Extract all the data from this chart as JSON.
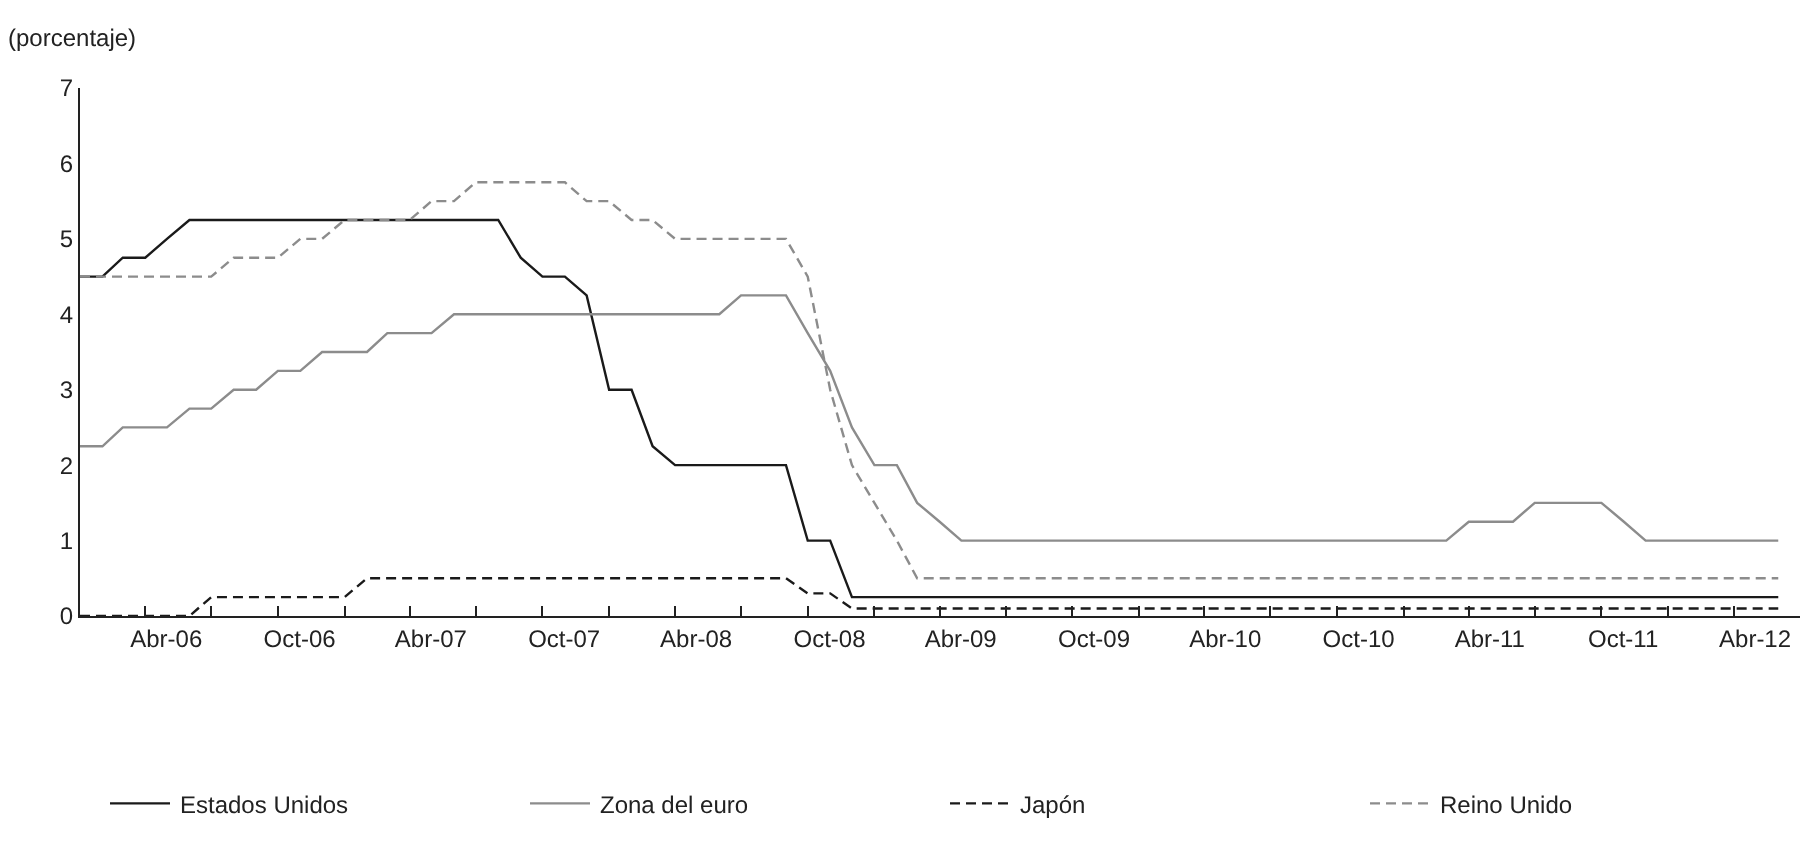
{
  "chart_data": {
    "type": "line",
    "ylabel": "(porcentaje)",
    "x": [
      "2006-01",
      "2006-02",
      "2006-03",
      "2006-04",
      "2006-05",
      "2006-06",
      "2006-07",
      "2006-08",
      "2006-09",
      "2006-10",
      "2006-11",
      "2006-12",
      "2007-01",
      "2007-02",
      "2007-03",
      "2007-04",
      "2007-05",
      "2007-06",
      "2007-07",
      "2007-08",
      "2007-09",
      "2007-10",
      "2007-11",
      "2007-12",
      "2008-01",
      "2008-02",
      "2008-03",
      "2008-04",
      "2008-05",
      "2008-06",
      "2008-07",
      "2008-08",
      "2008-09",
      "2008-10",
      "2008-11",
      "2008-12",
      "2009-01",
      "2009-02",
      "2009-03",
      "2009-04",
      "2009-05",
      "2009-06",
      "2009-07",
      "2009-08",
      "2009-09",
      "2009-10",
      "2009-11",
      "2009-12",
      "2010-01",
      "2010-02",
      "2010-03",
      "2010-04",
      "2010-05",
      "2010-06",
      "2010-07",
      "2010-08",
      "2010-09",
      "2010-10",
      "2010-11",
      "2010-12",
      "2011-01",
      "2011-02",
      "2011-03",
      "2011-04",
      "2011-05",
      "2011-06",
      "2011-07",
      "2011-08",
      "2011-09",
      "2011-10",
      "2011-11",
      "2011-12",
      "2012-01",
      "2012-02",
      "2012-03",
      "2012-04",
      "2012-05",
      "2012-06"
    ],
    "series": [
      {
        "name": "Estados Unidos",
        "color": "#1a1a1a",
        "line_style": "solid",
        "values": [
          4.5,
          4.5,
          4.75,
          4.75,
          5,
          5.25,
          5.25,
          5.25,
          5.25,
          5.25,
          5.25,
          5.25,
          5.25,
          5.25,
          5.25,
          5.25,
          5.25,
          5.25,
          5.25,
          5.25,
          4.75,
          4.5,
          4.5,
          4.25,
          3,
          3,
          2.25,
          2,
          2,
          2,
          2,
          2,
          2,
          1,
          1,
          0.25,
          0.25,
          0.25,
          0.25,
          0.25,
          0.25,
          0.25,
          0.25,
          0.25,
          0.25,
          0.25,
          0.25,
          0.25,
          0.25,
          0.25,
          0.25,
          0.25,
          0.25,
          0.25,
          0.25,
          0.25,
          0.25,
          0.25,
          0.25,
          0.25,
          0.25,
          0.25,
          0.25,
          0.25,
          0.25,
          0.25,
          0.25,
          0.25,
          0.25,
          0.25,
          0.25,
          0.25,
          0.25,
          0.25,
          0.25,
          0.25,
          0.25,
          0.25
        ]
      },
      {
        "name": "Zona del euro",
        "color": "#8c8c8c",
        "line_style": "solid",
        "values": [
          2.25,
          2.25,
          2.5,
          2.5,
          2.5,
          2.75,
          2.75,
          3,
          3,
          3.25,
          3.25,
          3.5,
          3.5,
          3.5,
          3.75,
          3.75,
          3.75,
          4,
          4,
          4,
          4,
          4,
          4,
          4,
          4,
          4,
          4,
          4,
          4,
          4,
          4.25,
          4.25,
          4.25,
          3.75,
          3.25,
          2.5,
          2,
          2,
          1.5,
          1.25,
          1,
          1,
          1,
          1,
          1,
          1,
          1,
          1,
          1,
          1,
          1,
          1,
          1,
          1,
          1,
          1,
          1,
          1,
          1,
          1,
          1,
          1,
          1,
          1.25,
          1.25,
          1.25,
          1.5,
          1.5,
          1.5,
          1.5,
          1.25,
          1,
          1,
          1,
          1,
          1,
          1,
          1
        ]
      },
      {
        "name": "Japón",
        "color": "#1a1a1a",
        "line_style": "dashed",
        "values": [
          0,
          0,
          0,
          0,
          0,
          0,
          0.25,
          0.25,
          0.25,
          0.25,
          0.25,
          0.25,
          0.25,
          0.5,
          0.5,
          0.5,
          0.5,
          0.5,
          0.5,
          0.5,
          0.5,
          0.5,
          0.5,
          0.5,
          0.5,
          0.5,
          0.5,
          0.5,
          0.5,
          0.5,
          0.5,
          0.5,
          0.5,
          0.3,
          0.3,
          0.1,
          0.1,
          0.1,
          0.1,
          0.1,
          0.1,
          0.1,
          0.1,
          0.1,
          0.1,
          0.1,
          0.1,
          0.1,
          0.1,
          0.1,
          0.1,
          0.1,
          0.1,
          0.1,
          0.1,
          0.1,
          0.1,
          0.1,
          0.1,
          0.1,
          0.1,
          0.1,
          0.1,
          0.1,
          0.1,
          0.1,
          0.1,
          0.1,
          0.1,
          0.1,
          0.1,
          0.1,
          0.1,
          0.1,
          0.1,
          0.1,
          0.1,
          0.1
        ]
      },
      {
        "name": "Reino Unido",
        "color": "#8c8c8c",
        "line_style": "dashed",
        "values": [
          4.5,
          4.5,
          4.5,
          4.5,
          4.5,
          4.5,
          4.5,
          4.75,
          4.75,
          4.75,
          5,
          5,
          5.25,
          5.25,
          5.25,
          5.25,
          5.5,
          5.5,
          5.75,
          5.75,
          5.75,
          5.75,
          5.75,
          5.5,
          5.5,
          5.25,
          5.25,
          5,
          5,
          5,
          5,
          5,
          5,
          4.5,
          3,
          2,
          1.5,
          1,
          0.5,
          0.5,
          0.5,
          0.5,
          0.5,
          0.5,
          0.5,
          0.5,
          0.5,
          0.5,
          0.5,
          0.5,
          0.5,
          0.5,
          0.5,
          0.5,
          0.5,
          0.5,
          0.5,
          0.5,
          0.5,
          0.5,
          0.5,
          0.5,
          0.5,
          0.5,
          0.5,
          0.5,
          0.5,
          0.5,
          0.5,
          0.5,
          0.5,
          0.5,
          0.5,
          0.5,
          0.5,
          0.5,
          0.5,
          0.5
        ]
      }
    ],
    "xlim": [
      "2006-01-01",
      "2012-07-01"
    ],
    "xticks": [
      {
        "value": "2006-04-30",
        "label": "Abr-06"
      },
      {
        "value": "2006-10-31",
        "label": "Oct-06"
      },
      {
        "value": "2007-04-30",
        "label": "Abr-07"
      },
      {
        "value": "2007-10-31",
        "label": "Oct-07"
      },
      {
        "value": "2008-04-30",
        "label": "Abr-08"
      },
      {
        "value": "2008-10-31",
        "label": "Oct-08"
      },
      {
        "value": "2009-04-30",
        "label": "Abr-09"
      },
      {
        "value": "2009-10-31",
        "label": "Oct-09"
      },
      {
        "value": "2010-04-30",
        "label": "Abr-10"
      },
      {
        "value": "2010-10-31",
        "label": "Oct-10"
      },
      {
        "value": "2011-04-30",
        "label": "Abr-11"
      },
      {
        "value": "2011-10-31",
        "label": "Oct-11"
      },
      {
        "value": "2012-04-30",
        "label": "Abr-12"
      },
      {
        "value": "2006-04-01",
        "label": null
      },
      {
        "value": "2006-07-01",
        "label": null
      },
      {
        "value": "2006-10-01",
        "label": null
      },
      {
        "value": "2007-01-01",
        "label": null
      },
      {
        "value": "2007-04-01",
        "label": null
      },
      {
        "value": "2007-07-01",
        "label": null
      },
      {
        "value": "2007-10-01",
        "label": null
      },
      {
        "value": "2008-01-01",
        "label": null
      },
      {
        "value": "2008-04-01",
        "label": null
      },
      {
        "value": "2008-07-01",
        "label": null
      },
      {
        "value": "2008-10-01",
        "label": null
      },
      {
        "value": "2009-01-01",
        "label": null
      },
      {
        "value": "2009-04-01",
        "label": null
      },
      {
        "value": "2009-07-01",
        "label": null
      },
      {
        "value": "2009-10-01",
        "label": null
      },
      {
        "value": "2010-01-01",
        "label": null
      },
      {
        "value": "2010-04-01",
        "label": null
      },
      {
        "value": "2010-07-01",
        "label": null
      },
      {
        "value": "2010-10-01",
        "label": null
      },
      {
        "value": "2011-01-01",
        "label": null
      },
      {
        "value": "2011-04-01",
        "label": null
      },
      {
        "value": "2011-07-01",
        "label": null
      },
      {
        "value": "2011-10-01",
        "label": null
      },
      {
        "value": "2012-01-01",
        "label": null
      },
      {
        "value": "2012-04-01",
        "label": null
      }
    ],
    "ylim": [
      0,
      7
    ],
    "yticks": [
      0,
      1,
      2,
      3,
      4,
      5,
      6,
      7
    ],
    "legend": "bottom",
    "marker": "none"
  }
}
